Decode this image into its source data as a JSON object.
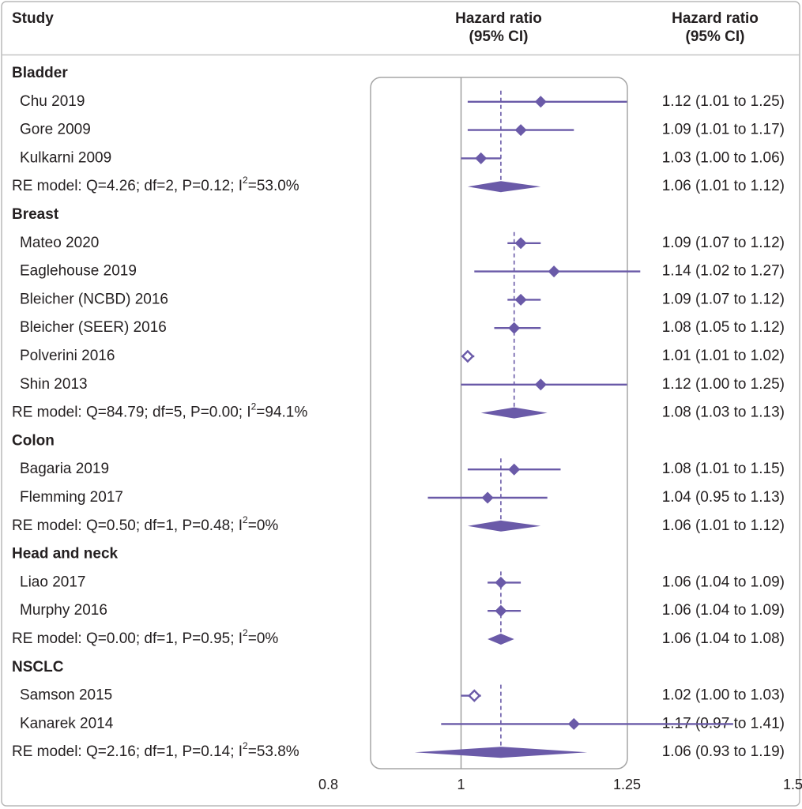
{
  "chart_data": {
    "type": "forest",
    "headers": {
      "study": "Study",
      "plot_line1": "Hazard ratio",
      "plot_line2": "(95% CI)",
      "hr_line1": "Hazard ratio",
      "hr_line2": "(95% CI)"
    },
    "x_axis": {
      "min": 0.8,
      "max": 1.5,
      "reference": 1.0,
      "ticks": [
        {
          "value": 0.8,
          "label": "0.8"
        },
        {
          "value": 1.0,
          "label": "1"
        },
        {
          "value": 1.25,
          "label": "1.25"
        },
        {
          "value": 1.5,
          "label": "1.5"
        }
      ]
    },
    "groups": [
      {
        "name": "Bladder",
        "pooled": 1.06,
        "studies": [
          {
            "label": "Chu 2019",
            "hr": 1.12,
            "lo": 1.01,
            "hi": 1.25,
            "text": "1.12 (1.01 to 1.25)"
          },
          {
            "label": "Gore 2009",
            "hr": 1.09,
            "lo": 1.01,
            "hi": 1.17,
            "text": "1.09 (1.01 to 1.17)"
          },
          {
            "label": "Kulkarni 2009",
            "hr": 1.03,
            "lo": 1.0,
            "hi": 1.06,
            "text": "1.03 (1.00 to 1.06)"
          }
        ],
        "summary": {
          "label_pre": "RE model: Q=4.26; df=2, P=0.12; I",
          "sup": "2",
          "label_post": "=53.0%",
          "hr": 1.06,
          "lo": 1.01,
          "hi": 1.12,
          "text": "1.06 (1.01 to 1.12)"
        }
      },
      {
        "name": "Breast",
        "pooled": 1.08,
        "studies": [
          {
            "label": "Mateo 2020",
            "hr": 1.09,
            "lo": 1.07,
            "hi": 1.12,
            "text": "1.09 (1.07 to 1.12)"
          },
          {
            "label": "Eaglehouse 2019",
            "hr": 1.14,
            "lo": 1.02,
            "hi": 1.27,
            "text": "1.14 (1.02 to 1.27)"
          },
          {
            "label": "Bleicher (NCBD) 2016",
            "hr": 1.09,
            "lo": 1.07,
            "hi": 1.12,
            "text": "1.09 (1.07 to 1.12)"
          },
          {
            "label": "Bleicher (SEER) 2016",
            "hr": 1.08,
            "lo": 1.05,
            "hi": 1.12,
            "text": "1.08 (1.05 to 1.12)"
          },
          {
            "label": "Polverini 2016",
            "hr": 1.01,
            "lo": 1.01,
            "hi": 1.02,
            "text": "1.01 (1.01 to 1.02)",
            "open": true
          },
          {
            "label": "Shin 2013",
            "hr": 1.12,
            "lo": 1.0,
            "hi": 1.25,
            "text": "1.12 (1.00 to 1.25)"
          }
        ],
        "summary": {
          "label_pre": "RE model: Q=84.79; df=5, P=0.00; I",
          "sup": "2",
          "label_post": "=94.1%",
          "hr": 1.08,
          "lo": 1.03,
          "hi": 1.13,
          "text": "1.08 (1.03 to 1.13)"
        }
      },
      {
        "name": "Colon",
        "pooled": 1.06,
        "studies": [
          {
            "label": "Bagaria 2019",
            "hr": 1.08,
            "lo": 1.01,
            "hi": 1.15,
            "text": "1.08 (1.01 to 1.15)"
          },
          {
            "label": "Flemming 2017",
            "hr": 1.04,
            "lo": 0.95,
            "hi": 1.13,
            "text": "1.04 (0.95 to 1.13)"
          }
        ],
        "summary": {
          "label_pre": "RE model: Q=0.50; df=1, P=0.48; I",
          "sup": "2",
          "label_post": "=0%",
          "hr": 1.06,
          "lo": 1.01,
          "hi": 1.12,
          "text": "1.06 (1.01 to 1.12)"
        }
      },
      {
        "name": "Head and neck",
        "pooled": 1.06,
        "studies": [
          {
            "label": "Liao 2017",
            "hr": 1.06,
            "lo": 1.04,
            "hi": 1.09,
            "text": "1.06 (1.04 to 1.09)"
          },
          {
            "label": "Murphy 2016",
            "hr": 1.06,
            "lo": 1.04,
            "hi": 1.09,
            "text": "1.06 (1.04 to 1.09)"
          }
        ],
        "summary": {
          "label_pre": "RE model: Q=0.00; df=1, P=0.95; I",
          "sup": "2",
          "label_post": "=0%",
          "hr": 1.06,
          "lo": 1.04,
          "hi": 1.08,
          "text": "1.06 (1.04 to 1.08)"
        }
      },
      {
        "name": "NSCLC",
        "pooled": 1.06,
        "studies": [
          {
            "label": "Samson 2015",
            "hr": 1.02,
            "lo": 1.0,
            "hi": 1.03,
            "text": "1.02 (1.00 to 1.03)",
            "open": true
          },
          {
            "label": "Kanarek 2014",
            "hr": 1.17,
            "lo": 0.97,
            "hi": 1.41,
            "text": "1.17 (0.97 to 1.41)"
          }
        ],
        "summary": {
          "label_pre": "RE model: Q=2.16; df=1, P=0.14; I",
          "sup": "2",
          "label_post": "=53.8%",
          "hr": 1.06,
          "lo": 0.93,
          "hi": 1.19,
          "text": "1.06 (0.93 to 1.19)"
        }
      }
    ]
  },
  "colors": {
    "mark": "#6a5aa8",
    "reference_line": "#9a9a9a",
    "panel_border": "#a5a5a5",
    "frame_border": "#b8b8b8",
    "rule": "#c4c4c4",
    "text": "#231f20"
  }
}
